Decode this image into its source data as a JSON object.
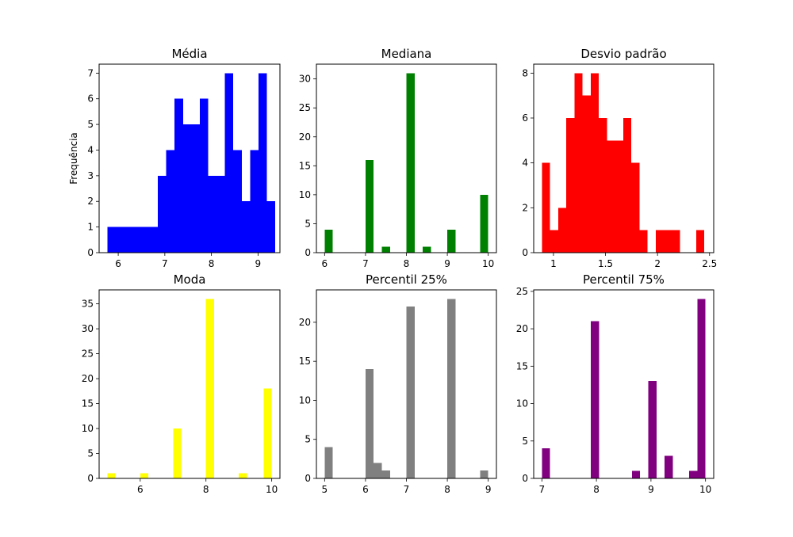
{
  "chart_data": [
    {
      "type": "histogram",
      "title": "Média",
      "ylabel": "Frequência",
      "color": "#0000ff",
      "xlim": [
        5.59,
        9.47
      ],
      "ylim": [
        0,
        7.35
      ],
      "xticks": [
        6,
        7,
        8,
        9
      ],
      "yticks": [
        0,
        1,
        2,
        3,
        4,
        5,
        6,
        7
      ],
      "bins": [
        5.77,
        5.95,
        6.13,
        6.31,
        6.49,
        6.67,
        6.85,
        7.03,
        7.21,
        7.39,
        7.57,
        7.75,
        7.93,
        8.11,
        8.29,
        8.47,
        8.65,
        8.83,
        9.01,
        9.19,
        9.37
      ],
      "counts": [
        1,
        1,
        1,
        1,
        1,
        1,
        3,
        4,
        6,
        5,
        5,
        6,
        3,
        3,
        7,
        4,
        2,
        4,
        7,
        2
      ]
    },
    {
      "type": "histogram",
      "title": "Mediana",
      "color": "#008000",
      "xlim": [
        5.8,
        10.2
      ],
      "ylim": [
        0,
        32.55
      ],
      "xticks": [
        6,
        7,
        8,
        9,
        10
      ],
      "yticks": [
        0,
        5,
        10,
        15,
        20,
        25,
        30
      ],
      "bins": [
        6.0,
        6.2,
        6.4,
        6.6,
        6.8,
        7.0,
        7.2,
        7.4,
        7.6,
        7.8,
        8.0,
        8.2,
        8.4,
        8.6,
        8.8,
        9.0,
        9.2,
        9.4,
        9.6,
        9.8,
        10.0
      ],
      "counts": [
        4,
        0,
        0,
        0,
        0,
        16,
        0,
        1,
        0,
        0,
        31,
        0,
        1,
        0,
        0,
        4,
        0,
        0,
        0,
        10
      ]
    },
    {
      "type": "histogram",
      "title": "Desvio padrão",
      "color": "#ff0000",
      "xlim": [
        0.81,
        2.54
      ],
      "ylim": [
        0,
        8.4
      ],
      "xticks": [
        1.0,
        1.5,
        2.0,
        2.5
      ],
      "yticks": [
        0,
        2,
        4,
        6,
        8
      ],
      "bins": [
        0.89,
        0.968,
        1.046,
        1.124,
        1.202,
        1.28,
        1.358,
        1.436,
        1.514,
        1.592,
        1.67,
        1.748,
        1.826,
        1.904,
        1.982,
        2.06,
        2.138,
        2.216,
        2.294,
        2.372,
        2.45
      ],
      "counts": [
        4,
        1,
        2,
        6,
        8,
        7,
        8,
        6,
        5,
        5,
        6,
        4,
        1,
        0,
        1,
        1,
        1,
        0,
        0,
        1
      ]
    },
    {
      "type": "histogram",
      "title": "Moda",
      "color": "#ffff00",
      "xlim": [
        4.75,
        10.25
      ],
      "ylim": [
        0,
        37.8
      ],
      "xticks": [
        6,
        8,
        10
      ],
      "yticks": [
        0,
        5,
        10,
        15,
        20,
        25,
        30,
        35
      ],
      "bins": [
        5.0,
        5.25,
        5.5,
        5.75,
        6.0,
        6.25,
        6.5,
        6.75,
        7.0,
        7.25,
        7.5,
        7.75,
        8.0,
        8.25,
        8.5,
        8.75,
        9.0,
        9.25,
        9.5,
        9.75,
        10.0
      ],
      "counts": [
        1,
        0,
        0,
        0,
        1,
        0,
        0,
        0,
        10,
        0,
        0,
        0,
        36,
        0,
        0,
        0,
        1,
        0,
        0,
        18
      ]
    },
    {
      "type": "histogram",
      "title": "Percentil 25%",
      "color": "#808080",
      "xlim": [
        4.8,
        9.2
      ],
      "ylim": [
        0,
        24.15
      ],
      "xticks": [
        5,
        6,
        7,
        8,
        9
      ],
      "yticks": [
        0,
        5,
        10,
        15,
        20
      ],
      "bins": [
        5.0,
        5.2,
        5.4,
        5.6,
        5.8,
        6.0,
        6.2,
        6.4,
        6.6,
        6.8,
        7.0,
        7.2,
        7.4,
        7.6,
        7.8,
        8.0,
        8.2,
        8.4,
        8.6,
        8.8,
        9.0
      ],
      "counts": [
        4,
        0,
        0,
        0,
        0,
        14,
        2,
        1,
        0,
        0,
        22,
        0,
        0,
        0,
        0,
        23,
        0,
        0,
        0,
        1
      ]
    },
    {
      "type": "histogram",
      "title": "Percentil 75%",
      "color": "#800080",
      "xlim": [
        6.85,
        10.15
      ],
      "ylim": [
        0,
        25.2
      ],
      "xticks": [
        7,
        8,
        9,
        10
      ],
      "yticks": [
        0,
        5,
        10,
        15,
        20,
        25
      ],
      "bins": [
        7.0,
        7.15,
        7.3,
        7.45,
        7.6,
        7.75,
        7.9,
        8.05,
        8.2,
        8.35,
        8.5,
        8.65,
        8.8,
        8.95,
        9.1,
        9.25,
        9.4,
        9.55,
        9.7,
        9.85,
        10.0
      ],
      "counts": [
        4,
        0,
        0,
        0,
        0,
        0,
        21,
        0,
        0,
        0,
        0,
        1,
        0,
        13,
        0,
        3,
        0,
        0,
        1,
        24
      ]
    }
  ]
}
